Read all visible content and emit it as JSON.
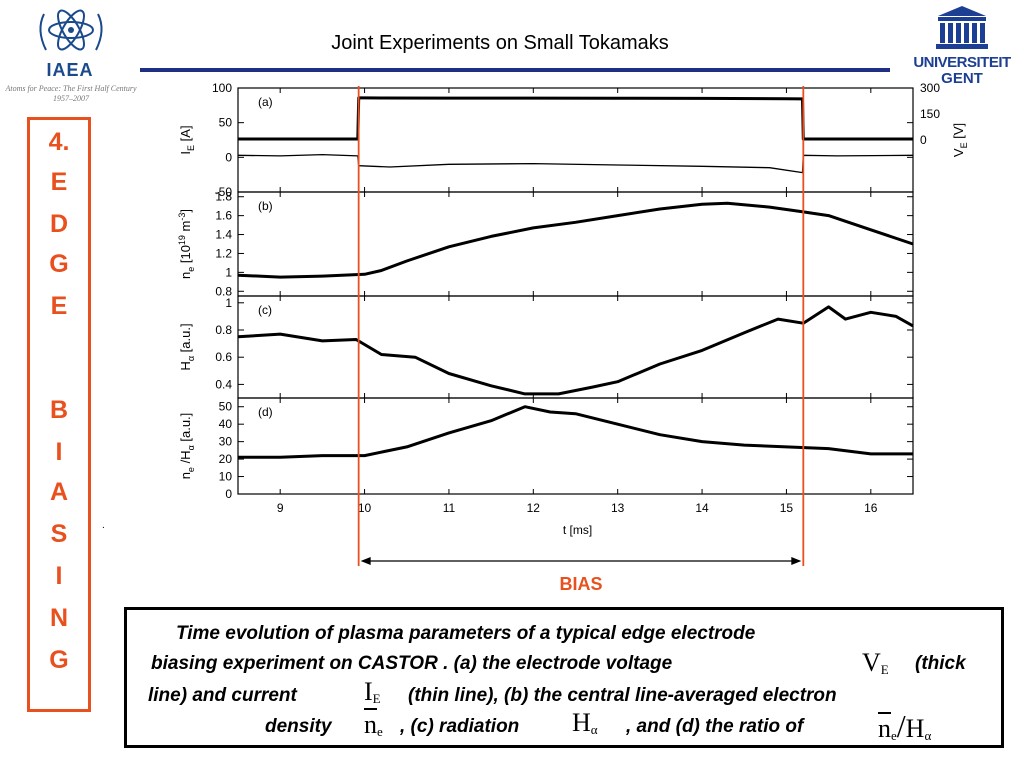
{
  "header": {
    "title": "Joint Experiments on Small Tokamaks",
    "left_logo": {
      "name": "IAEA",
      "tagline": "Atoms for Peace: The First Half Century",
      "years": "1957–2007",
      "color": "#1a4a8c"
    },
    "right_logo": {
      "line1": "UNIVERSITEIT",
      "line2": "GENT",
      "color": "#1c3f94"
    },
    "rule_color": "#1f2f86"
  },
  "sidebar": {
    "letters": [
      "4.",
      "E",
      "D",
      "G",
      "E",
      "",
      "B",
      "I",
      "A",
      "S",
      "I",
      "N",
      "G"
    ],
    "color": "#e8501e"
  },
  "figure": {
    "bias_label": "BIAS",
    "bias_color": "#e8501e",
    "dot": "."
  },
  "caption": {
    "line1": "Time evolution of plasma parameters of a typical edge electrode",
    "line2a": "biasing experiment on CASTOR . (a) the electrode voltage",
    "line2b": "(thick",
    "line3a": "line) and current",
    "line3b": "(thin line), (b) the central line-averaged electron",
    "line4a": "density",
    "line4b": ", (c) radiation",
    "line4c": ", and (d) the ratio of",
    "sym_ve": "V",
    "sym_ve_sub": "E",
    "sym_ie": "I",
    "sym_ie_sub": "E",
    "sym_ne": "n",
    "sym_ne_sub": "e",
    "sym_ha": "H",
    "sym_ha_sub": "α",
    "sym_ratio_n": "n",
    "sym_ratio_n_sub": "e",
    "sym_ratio_h": "H",
    "sym_ratio_h_sub": "α"
  },
  "chart_data": [
    {
      "type": "line",
      "panel_label": "(a)",
      "ylabel_left": "I",
      "ylabel_left_sub": "E",
      "ylabel_left_unit": "[A]",
      "ylabel_right": "V",
      "ylabel_right_sub": "E",
      "ylabel_right_unit": "[V]",
      "ylim": [
        -50,
        100
      ],
      "yticks": [
        -50,
        0,
        50,
        100
      ],
      "ylim_right": [
        -300,
        300
      ],
      "yticks_right": [
        0,
        150,
        300
      ],
      "xlim": [
        8.5,
        16.5
      ],
      "bias_window": [
        9.93,
        15.2
      ],
      "series": [
        {
          "style": "thick",
          "axis": "right",
          "x": [
            8.5,
            9.5,
            9.92,
            9.93,
            10.0,
            11.0,
            12.0,
            13.0,
            14.0,
            15.0,
            15.19,
            15.2,
            15.5,
            16.5
          ],
          "y": [
            6,
            6,
            6,
            243,
            243,
            242,
            242,
            241,
            240,
            238,
            237,
            6,
            6,
            6
          ]
        },
        {
          "style": "thin",
          "axis": "left",
          "x": [
            8.5,
            9.0,
            9.5,
            9.92,
            9.93,
            10.3,
            11.0,
            12.0,
            13.0,
            14.0,
            14.8,
            15.19,
            15.2,
            15.6,
            16.5
          ],
          "y": [
            3,
            2,
            4,
            2,
            -12,
            -14,
            -10,
            -9,
            -11,
            -13,
            -15,
            -22,
            3,
            2,
            3
          ]
        }
      ]
    },
    {
      "type": "line",
      "panel_label": "(b)",
      "ylabel_left": "n",
      "ylabel_left_sub": "e",
      "ylabel_left_unit": "[10",
      "ylabel_left_sup": "19",
      "ylabel_left_unit2": "m",
      "ylabel_left_sup2": "-3",
      "ylabel_left_end": "]",
      "ylim": [
        0.75,
        1.85
      ],
      "yticks": [
        0.8,
        1,
        1.2,
        1.4,
        1.6,
        1.8
      ],
      "xlim": [
        8.5,
        16.5
      ],
      "series": [
        {
          "style": "thick",
          "x": [
            8.5,
            9.0,
            9.5,
            10.0,
            10.2,
            10.5,
            11.0,
            11.5,
            12.0,
            12.5,
            13.0,
            13.5,
            14.0,
            14.3,
            14.8,
            15.2,
            15.5,
            16.0,
            16.5
          ],
          "y": [
            0.97,
            0.95,
            0.96,
            0.98,
            1.02,
            1.12,
            1.27,
            1.38,
            1.47,
            1.53,
            1.6,
            1.67,
            1.72,
            1.73,
            1.69,
            1.64,
            1.6,
            1.45,
            1.3
          ]
        }
      ]
    },
    {
      "type": "line",
      "panel_label": "(c)",
      "ylabel_left": "H",
      "ylabel_left_sub": "α",
      "ylabel_left_unit": "[a.u.]",
      "ylim": [
        0.3,
        1.05
      ],
      "yticks": [
        0.4,
        0.6,
        0.8,
        1
      ],
      "xlim": [
        8.5,
        16.5
      ],
      "series": [
        {
          "style": "thick",
          "x": [
            8.5,
            9.0,
            9.5,
            9.9,
            10.2,
            10.6,
            11.0,
            11.5,
            11.9,
            12.3,
            12.7,
            13.0,
            13.5,
            14.0,
            14.5,
            14.9,
            15.2,
            15.5,
            15.7,
            16.0,
            16.3,
            16.5
          ],
          "y": [
            0.75,
            0.77,
            0.72,
            0.73,
            0.62,
            0.6,
            0.48,
            0.39,
            0.33,
            0.33,
            0.38,
            0.42,
            0.55,
            0.65,
            0.78,
            0.88,
            0.85,
            0.97,
            0.88,
            0.93,
            0.9,
            0.83
          ]
        }
      ]
    },
    {
      "type": "line",
      "panel_label": "(d)",
      "ylabel_left": "n",
      "ylabel_left_sub": "e",
      "ylabel_left_unit": "/H",
      "ylabel_left_sub2": "α",
      "ylabel_left_end": "[a.u.]",
      "ylim": [
        0,
        55
      ],
      "yticks": [
        0,
        10,
        20,
        30,
        40,
        50
      ],
      "xlim": [
        8.5,
        16.5
      ],
      "xticks": [
        9,
        10,
        11,
        12,
        13,
        14,
        15,
        16
      ],
      "xlabel": "t [ms]",
      "series": [
        {
          "style": "thick",
          "x": [
            8.5,
            9.0,
            9.5,
            10.0,
            10.5,
            11.0,
            11.5,
            11.9,
            12.2,
            12.5,
            13.0,
            13.5,
            14.0,
            14.5,
            15.0,
            15.5,
            16.0,
            16.5
          ],
          "y": [
            21,
            21,
            22,
            22,
            27,
            35,
            42,
            50,
            47,
            46,
            40,
            34,
            30,
            28,
            27,
            26,
            23,
            23
          ]
        }
      ]
    }
  ]
}
